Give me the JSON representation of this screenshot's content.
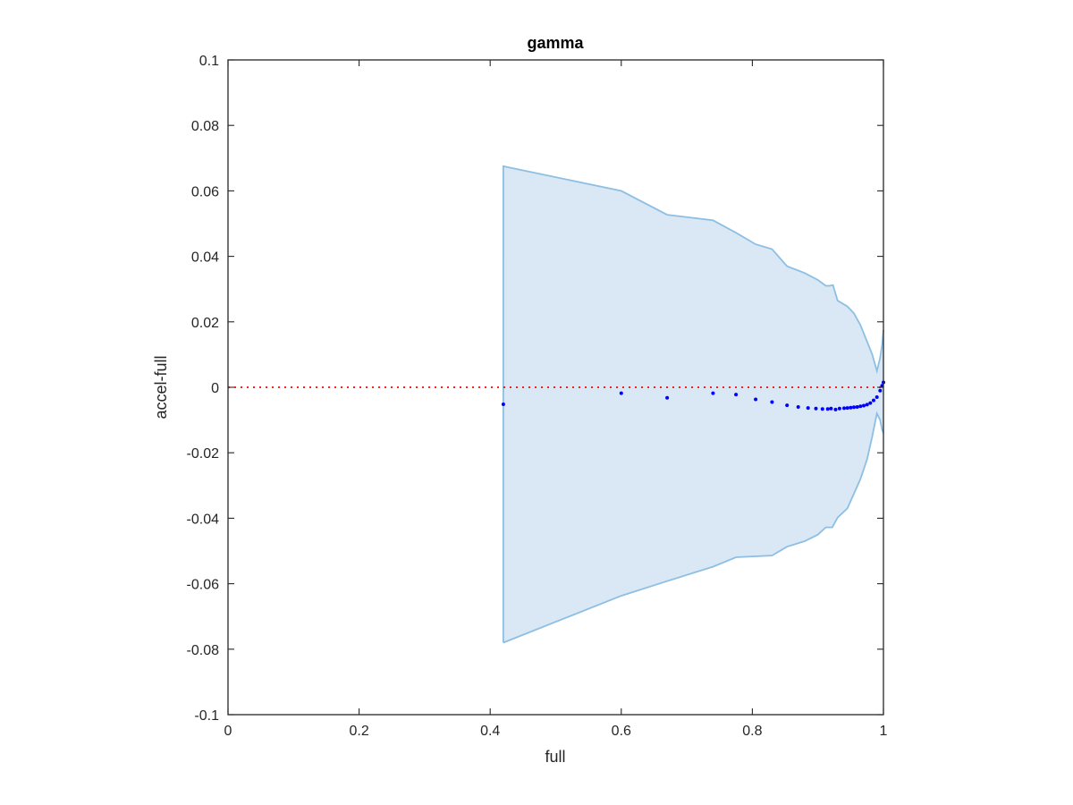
{
  "chart_data": {
    "type": "scatter",
    "title": "gamma",
    "xlabel": "full",
    "ylabel": "accel-full",
    "xlim": [
      0,
      1
    ],
    "ylim": [
      -0.1,
      0.1
    ],
    "xticks": [
      0,
      0.2,
      0.4,
      0.6,
      0.8,
      1
    ],
    "xtick_labels": [
      "0",
      "0.2",
      "0.4",
      "0.6",
      "0.8",
      "1"
    ],
    "yticks": [
      -0.1,
      -0.08,
      -0.06,
      -0.04,
      -0.02,
      0,
      0.02,
      0.04,
      0.06,
      0.08,
      0.1
    ],
    "ytick_labels": [
      "-0.1",
      "-0.08",
      "-0.06",
      "-0.04",
      "-0.02",
      "0",
      "0.02",
      "0.04",
      "0.06",
      "0.08",
      "0.1"
    ],
    "grid": false,
    "colors": {
      "points": "#0000ff",
      "band_fill": "#d9e8f4",
      "band_edge": "#8dbfe3",
      "reference_line": "#ff0000",
      "axes": "#262626"
    },
    "reference_line": {
      "y": 0,
      "style": "dotted"
    },
    "band": {
      "upper": [
        [
          0.42,
          0.0675
        ],
        [
          0.6,
          0.06
        ],
        [
          0.67,
          0.0527
        ],
        [
          0.74,
          0.051
        ],
        [
          0.775,
          0.0472
        ],
        [
          0.805,
          0.0437
        ],
        [
          0.83,
          0.0422
        ],
        [
          0.853,
          0.037
        ],
        [
          0.88,
          0.0349
        ],
        [
          0.9,
          0.0328
        ],
        [
          0.912,
          0.031
        ],
        [
          0.918,
          0.031
        ],
        [
          0.923,
          0.0312
        ],
        [
          0.93,
          0.0265
        ],
        [
          0.945,
          0.0247
        ],
        [
          0.955,
          0.0226
        ],
        [
          0.965,
          0.019
        ],
        [
          0.975,
          0.014
        ],
        [
          0.983,
          0.01
        ],
        [
          0.99,
          0.005
        ],
        [
          0.995,
          0.009
        ],
        [
          0.998,
          0.013
        ],
        [
          1.0,
          0.0175
        ]
      ],
      "lower": [
        [
          0.42,
          -0.078
        ],
        [
          0.6,
          -0.0637
        ],
        [
          0.67,
          -0.0592
        ],
        [
          0.74,
          -0.0548
        ],
        [
          0.775,
          -0.0519
        ],
        [
          0.83,
          -0.0514
        ],
        [
          0.853,
          -0.0487
        ],
        [
          0.88,
          -0.047
        ],
        [
          0.9,
          -0.045
        ],
        [
          0.912,
          -0.0428
        ],
        [
          0.922,
          -0.0428
        ],
        [
          0.93,
          -0.0398
        ],
        [
          0.945,
          -0.037
        ],
        [
          0.955,
          -0.0325
        ],
        [
          0.965,
          -0.028
        ],
        [
          0.975,
          -0.022
        ],
        [
          0.983,
          -0.015
        ],
        [
          0.99,
          -0.008
        ],
        [
          0.995,
          -0.01
        ],
        [
          0.998,
          -0.013
        ],
        [
          1.0,
          -0.014
        ]
      ]
    },
    "series": [
      {
        "x": [
          0.42,
          0.6,
          0.67,
          0.74,
          0.775,
          0.805,
          0.83,
          0.853,
          0.87,
          0.885,
          0.897,
          0.907,
          0.915,
          0.92,
          0.927,
          0.933,
          0.94,
          0.945,
          0.95,
          0.955,
          0.96,
          0.965,
          0.97,
          0.975,
          0.98,
          0.985,
          0.99,
          0.995,
          0.998,
          1.0
        ],
        "y": [
          -0.0052,
          -0.0018,
          -0.0032,
          -0.0018,
          -0.0022,
          -0.0037,
          -0.0045,
          -0.0055,
          -0.006,
          -0.0063,
          -0.0065,
          -0.0066,
          -0.0066,
          -0.0065,
          -0.0068,
          -0.0065,
          -0.0064,
          -0.0063,
          -0.0062,
          -0.0061,
          -0.006,
          -0.0058,
          -0.0056,
          -0.0053,
          -0.0048,
          -0.004,
          -0.003,
          -0.001,
          0.0005,
          0.0015
        ]
      }
    ]
  }
}
